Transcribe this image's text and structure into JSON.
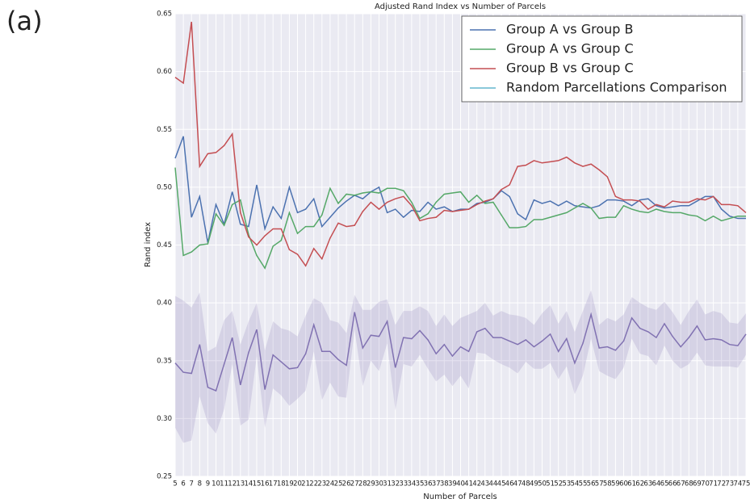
{
  "label": "(a)",
  "chart_data": {
    "type": "line",
    "title": "Adjusted Rand Index vs Number of Parcels",
    "x_label": "Number of Parcels",
    "y_label": "Rand index",
    "x": [
      5,
      6,
      7,
      8,
      9,
      10,
      11,
      12,
      13,
      14,
      15,
      16,
      17,
      18,
      19,
      20,
      21,
      22,
      23,
      24,
      25,
      26,
      27,
      28,
      29,
      30,
      31,
      32,
      33,
      34,
      35,
      36,
      37,
      38,
      39,
      40,
      41,
      42,
      43,
      44,
      45,
      46,
      47,
      48,
      49,
      50,
      51,
      52,
      53,
      54,
      55,
      56,
      57,
      58,
      59,
      60,
      61,
      62,
      63,
      64,
      65,
      66,
      67,
      68,
      69,
      70,
      71,
      72,
      73,
      74,
      75
    ],
    "xlim": [
      5,
      75
    ],
    "xticks": [
      5,
      6,
      7,
      8,
      9,
      10,
      11,
      12,
      13,
      14,
      15,
      16,
      17,
      18,
      19,
      20,
      21,
      22,
      23,
      24,
      25,
      26,
      27,
      28,
      29,
      30,
      31,
      32,
      33,
      34,
      35,
      36,
      37,
      38,
      39,
      40,
      41,
      42,
      43,
      44,
      45,
      46,
      47,
      48,
      49,
      50,
      51,
      52,
      53,
      54,
      55,
      56,
      57,
      58,
      59,
      60,
      61,
      62,
      63,
      64,
      65,
      66,
      67,
      68,
      69,
      70,
      71,
      72,
      73,
      74,
      75
    ],
    "ylim": [
      0.25,
      0.65
    ],
    "yticks": [
      0.25,
      {
        "value": 0.3,
        "label": "0.30"
      },
      0.35,
      {
        "value": 0.4,
        "label": "0.40"
      },
      0.45,
      {
        "value": 0.5,
        "label": "0.50"
      },
      0.55,
      {
        "value": 0.6,
        "label": "0.60"
      },
      0.65
    ],
    "grid": true,
    "legend": "upper right",
    "series": [
      {
        "name": "Group A vs Group B",
        "color": "#4c72b0",
        "values": [
          0.525,
          0.544,
          0.474,
          0.492,
          0.452,
          0.485,
          0.468,
          0.496,
          0.468,
          0.466,
          0.502,
          0.464,
          0.483,
          0.473,
          0.5,
          0.478,
          0.481,
          0.49,
          0.466,
          0.474,
          0.482,
          0.488,
          0.493,
          0.49,
          0.496,
          0.5,
          0.478,
          0.481,
          0.474,
          0.48,
          0.479,
          0.487,
          0.481,
          0.483,
          0.479,
          0.481,
          0.481,
          0.486,
          0.487,
          0.49,
          0.497,
          0.492,
          0.477,
          0.472,
          0.489,
          0.486,
          0.488,
          0.484,
          0.488,
          0.484,
          0.483,
          0.482,
          0.484,
          0.489,
          0.489,
          0.488,
          0.484,
          0.489,
          0.49,
          0.484,
          0.482,
          0.483,
          0.484,
          0.484,
          0.488,
          0.492,
          0.492,
          0.481,
          0.475,
          0.473,
          0.473
        ]
      },
      {
        "name": "Group A vs Group C",
        "color": "#55a868",
        "values": [
          0.517,
          0.441,
          0.444,
          0.45,
          0.451,
          0.477,
          0.467,
          0.485,
          0.489,
          0.459,
          0.441,
          0.43,
          0.449,
          0.454,
          0.478,
          0.46,
          0.466,
          0.466,
          0.476,
          0.499,
          0.486,
          0.494,
          0.493,
          0.495,
          0.496,
          0.495,
          0.499,
          0.499,
          0.497,
          0.487,
          0.473,
          0.477,
          0.487,
          0.494,
          0.495,
          0.496,
          0.487,
          0.493,
          0.486,
          0.487,
          0.476,
          0.465,
          0.465,
          0.466,
          0.472,
          0.472,
          0.474,
          0.476,
          0.478,
          0.482,
          0.486,
          0.482,
          0.473,
          0.474,
          0.474,
          0.484,
          0.481,
          0.479,
          0.478,
          0.481,
          0.479,
          0.478,
          0.478,
          0.476,
          0.475,
          0.471,
          0.475,
          0.471,
          0.473,
          0.475,
          0.475
        ]
      },
      {
        "name": "Group B vs Group C",
        "color": "#c44e52",
        "values": [
          0.595,
          0.59,
          0.643,
          0.518,
          0.529,
          0.53,
          0.536,
          0.546,
          0.478,
          0.457,
          0.45,
          0.458,
          0.464,
          0.464,
          0.446,
          0.442,
          0.432,
          0.447,
          0.438,
          0.456,
          0.469,
          0.466,
          0.467,
          0.479,
          0.487,
          0.481,
          0.487,
          0.49,
          0.492,
          0.484,
          0.471,
          0.473,
          0.474,
          0.48,
          0.479,
          0.48,
          0.481,
          0.485,
          0.488,
          0.49,
          0.498,
          0.502,
          0.518,
          0.519,
          0.523,
          0.521,
          0.522,
          0.523,
          0.526,
          0.521,
          0.518,
          0.52,
          0.515,
          0.509,
          0.492,
          0.489,
          0.489,
          0.488,
          0.481,
          0.485,
          0.483,
          0.488,
          0.487,
          0.487,
          0.49,
          0.489,
          0.492,
          0.485,
          0.485,
          0.484,
          0.478
        ]
      },
      {
        "name": "Random Parcellations Comparison",
        "color": "#8172b2",
        "legend_color": "#64b5cd",
        "values": [
          0.348,
          0.34,
          0.339,
          0.364,
          0.327,
          0.324,
          0.347,
          0.37,
          0.329,
          0.357,
          0.377,
          0.325,
          0.355,
          0.349,
          0.343,
          0.344,
          0.356,
          0.381,
          0.358,
          0.358,
          0.351,
          0.346,
          0.392,
          0.361,
          0.372,
          0.371,
          0.384,
          0.344,
          0.37,
          0.369,
          0.376,
          0.368,
          0.356,
          0.364,
          0.354,
          0.362,
          0.358,
          0.375,
          0.378,
          0.37,
          0.37,
          0.367,
          0.364,
          0.368,
          0.362,
          0.367,
          0.373,
          0.358,
          0.369,
          0.348,
          0.365,
          0.39,
          0.361,
          0.362,
          0.359,
          0.367,
          0.387,
          0.378,
          0.375,
          0.37,
          0.382,
          0.371,
          0.362,
          0.37,
          0.38,
          0.368,
          0.369,
          0.368,
          0.364,
          0.363,
          0.373
        ],
        "upper": [
          0.406,
          0.402,
          0.396,
          0.409,
          0.358,
          0.362,
          0.385,
          0.393,
          0.364,
          0.384,
          0.4,
          0.359,
          0.384,
          0.378,
          0.376,
          0.371,
          0.389,
          0.404,
          0.4,
          0.385,
          0.383,
          0.374,
          0.407,
          0.394,
          0.394,
          0.401,
          0.403,
          0.381,
          0.393,
          0.393,
          0.397,
          0.393,
          0.38,
          0.39,
          0.38,
          0.387,
          0.39,
          0.393,
          0.4,
          0.389,
          0.393,
          0.39,
          0.389,
          0.387,
          0.381,
          0.391,
          0.398,
          0.382,
          0.393,
          0.375,
          0.393,
          0.411,
          0.381,
          0.387,
          0.384,
          0.39,
          0.405,
          0.4,
          0.396,
          0.394,
          0.401,
          0.392,
          0.381,
          0.393,
          0.403,
          0.39,
          0.393,
          0.391,
          0.383,
          0.382,
          0.391
        ],
        "lower": [
          0.292,
          0.279,
          0.281,
          0.319,
          0.296,
          0.287,
          0.308,
          0.347,
          0.294,
          0.299,
          0.354,
          0.292,
          0.326,
          0.32,
          0.311,
          0.317,
          0.324,
          0.358,
          0.316,
          0.331,
          0.319,
          0.318,
          0.377,
          0.328,
          0.35,
          0.341,
          0.365,
          0.307,
          0.347,
          0.345,
          0.355,
          0.343,
          0.332,
          0.338,
          0.328,
          0.337,
          0.326,
          0.357,
          0.356,
          0.351,
          0.347,
          0.344,
          0.339,
          0.349,
          0.343,
          0.343,
          0.348,
          0.334,
          0.345,
          0.321,
          0.337,
          0.369,
          0.341,
          0.337,
          0.334,
          0.344,
          0.369,
          0.356,
          0.354,
          0.346,
          0.363,
          0.35,
          0.343,
          0.347,
          0.357,
          0.346,
          0.345,
          0.345,
          0.345,
          0.344,
          0.355
        ]
      }
    ]
  }
}
